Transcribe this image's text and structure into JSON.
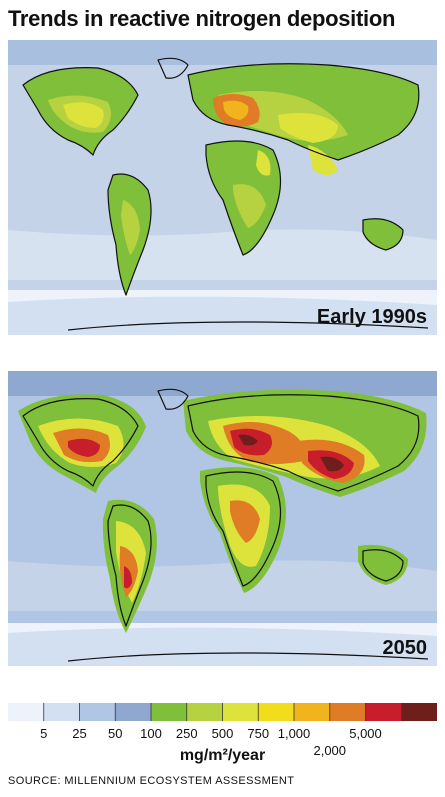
{
  "title": "Trends in reactive nitrogen deposition",
  "maps": [
    {
      "label": "Early 1990s"
    },
    {
      "label": "2050"
    }
  ],
  "legend": {
    "colors": [
      "#eef2fa",
      "#d3e0f1",
      "#b0c6e4",
      "#8ea8cf",
      "#7fbf3a",
      "#b6d241",
      "#dde33a",
      "#f2dd1c",
      "#f2b41c",
      "#e07b26",
      "#c81e2b",
      "#6e1f1b"
    ],
    "ticks": [
      "5",
      "25",
      "50",
      "100",
      "250",
      "500",
      "750",
      "1,000",
      "2,000",
      "5,000"
    ],
    "unit": "mg/m²/year"
  },
  "source": "SOURCE: MILLENNIUM ECOSYSTEM ASSESSMENT"
}
